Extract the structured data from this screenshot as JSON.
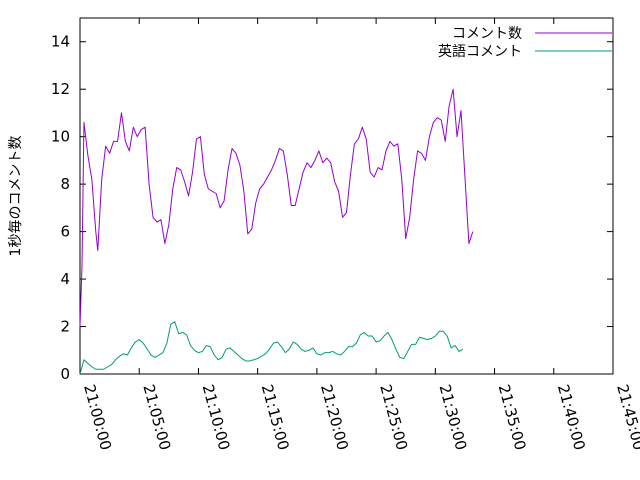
{
  "chart_data": {
    "type": "line",
    "title": "",
    "xlabel": "",
    "ylabel": "1秒毎のコメント数",
    "xlim": [
      "21:00:00",
      "21:45:00"
    ],
    "ylim": [
      0,
      15
    ],
    "y_ticks": [
      "0",
      "2",
      "4",
      "6",
      "8",
      "10",
      "12",
      "14"
    ],
    "x_ticks": [
      "21:00:00",
      "21:05:00",
      "21:10:00",
      "21:15:00",
      "21:20:00",
      "21:25:00",
      "21:30:00",
      "21:35:00",
      "21:40:00",
      "21:45:00"
    ],
    "grid": false,
    "legend_position": "top-right",
    "series": [
      {
        "name": "コメント数",
        "color": "#9400d3",
        "points": [
          [
            "21:00:00",
            2.0
          ],
          [
            "21:00:10",
            4.5
          ],
          [
            "21:00:20",
            10.6
          ],
          [
            "21:00:40",
            9.2
          ],
          [
            "21:01:00",
            8.2
          ],
          [
            "21:01:20",
            6.0
          ],
          [
            "21:01:30",
            5.2
          ],
          [
            "21:01:50",
            8.2
          ],
          [
            "21:02:10",
            9.6
          ],
          [
            "21:02:30",
            9.3
          ],
          [
            "21:02:50",
            9.8
          ],
          [
            "21:03:10",
            9.8
          ],
          [
            "21:03:30",
            11.0
          ],
          [
            "21:03:50",
            9.8
          ],
          [
            "21:04:10",
            9.4
          ],
          [
            "21:04:30",
            10.4
          ],
          [
            "21:04:50",
            10.0
          ],
          [
            "21:05:10",
            10.3
          ],
          [
            "21:05:30",
            10.4
          ],
          [
            "21:05:50",
            8.0
          ],
          [
            "21:06:10",
            6.6
          ],
          [
            "21:06:30",
            6.4
          ],
          [
            "21:06:50",
            6.5
          ],
          [
            "21:07:10",
            5.5
          ],
          [
            "21:07:30",
            6.3
          ],
          [
            "21:07:50",
            7.8
          ],
          [
            "21:08:10",
            8.7
          ],
          [
            "21:08:30",
            8.6
          ],
          [
            "21:08:50",
            8.1
          ],
          [
            "21:09:10",
            7.5
          ],
          [
            "21:09:30",
            8.5
          ],
          [
            "21:09:50",
            9.9
          ],
          [
            "21:10:10",
            10.0
          ],
          [
            "21:10:30",
            8.4
          ],
          [
            "21:10:50",
            7.8
          ],
          [
            "21:11:10",
            7.7
          ],
          [
            "21:11:30",
            7.6
          ],
          [
            "21:11:50",
            7.0
          ],
          [
            "21:12:10",
            7.3
          ],
          [
            "21:12:30",
            8.6
          ],
          [
            "21:12:50",
            9.5
          ],
          [
            "21:13:10",
            9.3
          ],
          [
            "21:13:30",
            8.8
          ],
          [
            "21:13:50",
            7.7
          ],
          [
            "21:14:10",
            5.9
          ],
          [
            "21:14:30",
            6.1
          ],
          [
            "21:14:50",
            7.2
          ],
          [
            "21:15:10",
            7.8
          ],
          [
            "21:15:30",
            8.0
          ],
          [
            "21:15:50",
            8.3
          ],
          [
            "21:16:10",
            8.6
          ],
          [
            "21:16:30",
            9.0
          ],
          [
            "21:16:50",
            9.5
          ],
          [
            "21:17:10",
            9.4
          ],
          [
            "21:17:30",
            8.4
          ],
          [
            "21:17:50",
            7.1
          ],
          [
            "21:18:10",
            7.1
          ],
          [
            "21:18:30",
            7.8
          ],
          [
            "21:18:50",
            8.5
          ],
          [
            "21:19:10",
            8.9
          ],
          [
            "21:19:30",
            8.7
          ],
          [
            "21:19:50",
            9.0
          ],
          [
            "21:20:10",
            9.4
          ],
          [
            "21:20:30",
            8.9
          ],
          [
            "21:20:50",
            9.1
          ],
          [
            "21:21:10",
            8.9
          ],
          [
            "21:21:30",
            8.1
          ],
          [
            "21:21:50",
            7.7
          ],
          [
            "21:22:10",
            6.6
          ],
          [
            "21:22:30",
            6.8
          ],
          [
            "21:22:50",
            8.4
          ],
          [
            "21:23:10",
            9.7
          ],
          [
            "21:23:30",
            9.9
          ],
          [
            "21:23:50",
            10.4
          ],
          [
            "21:24:10",
            9.9
          ],
          [
            "21:24:30",
            8.5
          ],
          [
            "21:24:50",
            8.3
          ],
          [
            "21:25:10",
            8.7
          ],
          [
            "21:25:30",
            8.6
          ],
          [
            "21:25:50",
            9.4
          ],
          [
            "21:26:10",
            9.8
          ],
          [
            "21:26:30",
            9.6
          ],
          [
            "21:26:50",
            9.7
          ],
          [
            "21:27:10",
            8.2
          ],
          [
            "21:27:30",
            5.7
          ],
          [
            "21:27:50",
            6.6
          ],
          [
            "21:28:10",
            8.2
          ],
          [
            "21:28:30",
            9.4
          ],
          [
            "21:28:50",
            9.3
          ],
          [
            "21:29:10",
            9.0
          ],
          [
            "21:29:30",
            10.0
          ],
          [
            "21:29:50",
            10.6
          ],
          [
            "21:30:10",
            10.8
          ],
          [
            "21:30:30",
            10.7
          ],
          [
            "21:30:50",
            9.8
          ],
          [
            "21:31:10",
            11.3
          ],
          [
            "21:31:30",
            12.0
          ],
          [
            "21:31:50",
            10.0
          ],
          [
            "21:32:10",
            11.1
          ],
          [
            "21:32:30",
            8.3
          ],
          [
            "21:32:50",
            5.5
          ],
          [
            "21:33:10",
            6.0
          ]
        ]
      },
      {
        "name": "英語コメント",
        "color": "#009e73",
        "points": [
          [
            "21:00:00",
            0.0
          ],
          [
            "21:00:10",
            0.3
          ],
          [
            "21:00:20",
            0.6
          ],
          [
            "21:00:40",
            0.45
          ],
          [
            "21:01:00",
            0.3
          ],
          [
            "21:01:20",
            0.2
          ],
          [
            "21:01:40",
            0.2
          ],
          [
            "21:02:00",
            0.2
          ],
          [
            "21:02:20",
            0.3
          ],
          [
            "21:02:40",
            0.4
          ],
          [
            "21:03:00",
            0.6
          ],
          [
            "21:03:20",
            0.75
          ],
          [
            "21:03:40",
            0.85
          ],
          [
            "21:04:00",
            0.8
          ],
          [
            "21:04:20",
            1.1
          ],
          [
            "21:04:40",
            1.35
          ],
          [
            "21:05:00",
            1.45
          ],
          [
            "21:05:20",
            1.3
          ],
          [
            "21:05:40",
            1.05
          ],
          [
            "21:06:00",
            0.8
          ],
          [
            "21:06:20",
            0.7
          ],
          [
            "21:06:40",
            0.8
          ],
          [
            "21:07:00",
            0.9
          ],
          [
            "21:07:20",
            1.3
          ],
          [
            "21:07:40",
            2.1
          ],
          [
            "21:08:00",
            2.2
          ],
          [
            "21:08:20",
            1.7
          ],
          [
            "21:08:40",
            1.75
          ],
          [
            "21:09:00",
            1.65
          ],
          [
            "21:09:20",
            1.2
          ],
          [
            "21:09:40",
            1.0
          ],
          [
            "21:10:00",
            0.9
          ],
          [
            "21:10:20",
            0.95
          ],
          [
            "21:10:40",
            1.2
          ],
          [
            "21:11:00",
            1.15
          ],
          [
            "21:11:20",
            0.8
          ],
          [
            "21:11:40",
            0.6
          ],
          [
            "21:12:00",
            0.7
          ],
          [
            "21:12:20",
            1.05
          ],
          [
            "21:12:40",
            1.1
          ],
          [
            "21:13:00",
            0.95
          ],
          [
            "21:13:20",
            0.8
          ],
          [
            "21:13:40",
            0.65
          ],
          [
            "21:14:00",
            0.55
          ],
          [
            "21:14:20",
            0.55
          ],
          [
            "21:14:40",
            0.6
          ],
          [
            "21:15:00",
            0.65
          ],
          [
            "21:15:20",
            0.75
          ],
          [
            "21:15:40",
            0.85
          ],
          [
            "21:16:00",
            1.05
          ],
          [
            "21:16:20",
            1.3
          ],
          [
            "21:16:40",
            1.35
          ],
          [
            "21:17:00",
            1.15
          ],
          [
            "21:17:20",
            0.9
          ],
          [
            "21:17:40",
            1.05
          ],
          [
            "21:18:00",
            1.35
          ],
          [
            "21:18:20",
            1.25
          ],
          [
            "21:18:40",
            1.05
          ],
          [
            "21:19:00",
            0.95
          ],
          [
            "21:19:20",
            1.0
          ],
          [
            "21:19:40",
            1.1
          ],
          [
            "21:20:00",
            0.85
          ],
          [
            "21:20:20",
            0.8
          ],
          [
            "21:20:40",
            0.9
          ],
          [
            "21:21:00",
            0.9
          ],
          [
            "21:21:20",
            0.95
          ],
          [
            "21:21:40",
            0.85
          ],
          [
            "21:22:00",
            0.8
          ],
          [
            "21:22:20",
            0.95
          ],
          [
            "21:22:40",
            1.15
          ],
          [
            "21:23:00",
            1.15
          ],
          [
            "21:23:20",
            1.3
          ],
          [
            "21:23:40",
            1.65
          ],
          [
            "21:24:00",
            1.75
          ],
          [
            "21:24:20",
            1.6
          ],
          [
            "21:24:40",
            1.6
          ],
          [
            "21:25:00",
            1.35
          ],
          [
            "21:25:20",
            1.4
          ],
          [
            "21:25:40",
            1.6
          ],
          [
            "21:26:00",
            1.75
          ],
          [
            "21:26:20",
            1.45
          ],
          [
            "21:26:40",
            1.05
          ],
          [
            "21:27:00",
            0.7
          ],
          [
            "21:27:20",
            0.65
          ],
          [
            "21:27:40",
            0.95
          ],
          [
            "21:28:00",
            1.25
          ],
          [
            "21:28:20",
            1.25
          ],
          [
            "21:28:40",
            1.55
          ],
          [
            "21:29:00",
            1.5
          ],
          [
            "21:29:20",
            1.45
          ],
          [
            "21:29:40",
            1.5
          ],
          [
            "21:30:00",
            1.6
          ],
          [
            "21:30:20",
            1.8
          ],
          [
            "21:30:40",
            1.8
          ],
          [
            "21:31:00",
            1.6
          ],
          [
            "21:31:20",
            1.1
          ],
          [
            "21:31:40",
            1.2
          ],
          [
            "21:32:00",
            0.95
          ],
          [
            "21:32:20",
            1.05
          ]
        ]
      }
    ]
  }
}
